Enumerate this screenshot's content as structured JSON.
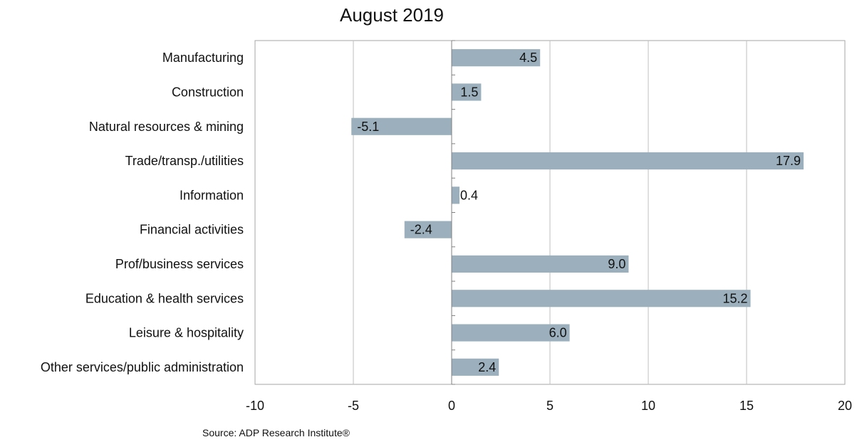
{
  "chart_data": {
    "type": "bar",
    "orientation": "horizontal",
    "title": "August 2019",
    "categories": [
      "Manufacturing",
      "Construction",
      "Natural resources & mining",
      "Trade/transp./utilities",
      "Information",
      "Financial activities",
      "Prof/business services",
      "Education & health services",
      "Leisure & hospitality",
      "Other services/public administration"
    ],
    "values": [
      4.5,
      1.5,
      -5.1,
      17.9,
      0.4,
      -2.4,
      9.0,
      15.2,
      6.0,
      2.4
    ],
    "value_labels": [
      "4.5",
      "1.5",
      "-5.1",
      "17.9",
      "0.4",
      "-2.4",
      "9.0",
      "15.2",
      "6.0",
      "2.4"
    ],
    "xlim": [
      -10,
      20
    ],
    "xticks": [
      -10,
      -5,
      0,
      5,
      10,
      15,
      20
    ],
    "xtick_labels": [
      "-10",
      "-5",
      "0",
      "5",
      "10",
      "15",
      "20"
    ],
    "grid": "vertical",
    "bar_color": "#9bb0bc",
    "source": "Source: ADP Research Institute®"
  }
}
